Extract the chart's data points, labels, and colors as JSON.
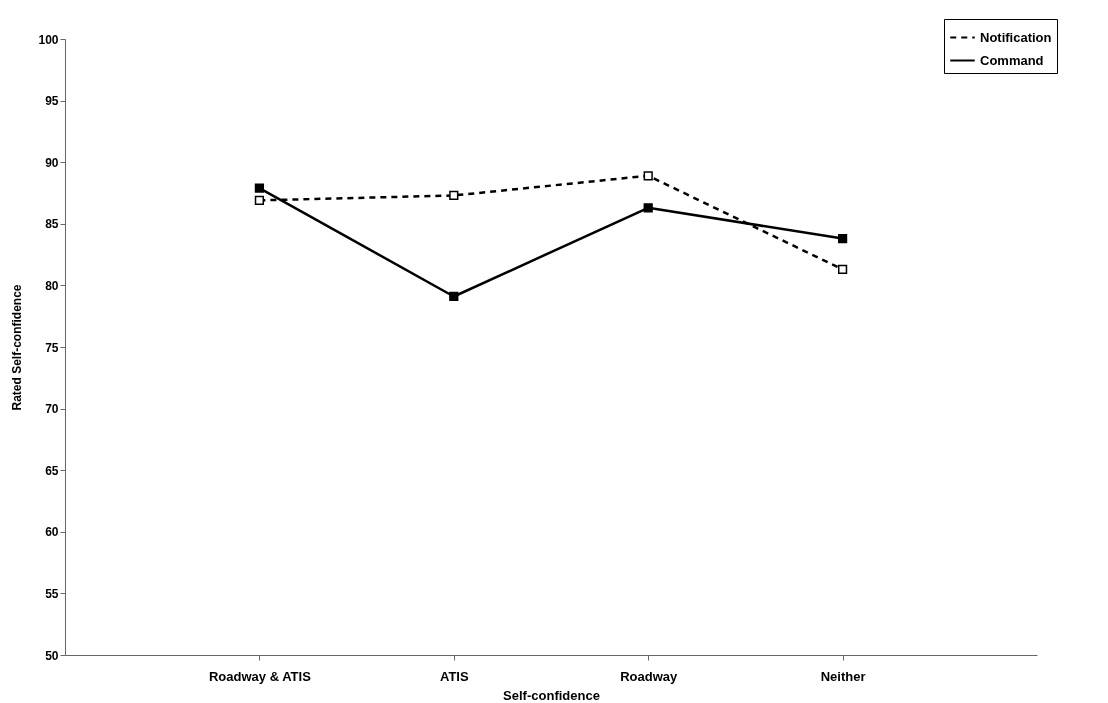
{
  "chart_data": {
    "type": "line",
    "xlabel": "Self-confidence",
    "ylabel": "Rated Self-confidence",
    "categories": [
      "Roadway & ATIS",
      "ATIS",
      "Roadway",
      "Neither"
    ],
    "series": [
      {
        "name": "Notification",
        "color": "#000000",
        "line_style": "dashed",
        "marker": "square",
        "values": [
          86.9,
          87.3,
          88.9,
          81.3
        ]
      },
      {
        "name": "Command",
        "color": "#000000",
        "line_style": "solid",
        "marker": "square",
        "values": [
          87.9,
          79.1,
          86.3,
          83.8
        ]
      }
    ],
    "ylim": [
      50,
      100
    ],
    "yticks": [
      50,
      55,
      60,
      65,
      70,
      75,
      80,
      85,
      90,
      95,
      100
    ],
    "grid": false,
    "legend": "top right"
  }
}
